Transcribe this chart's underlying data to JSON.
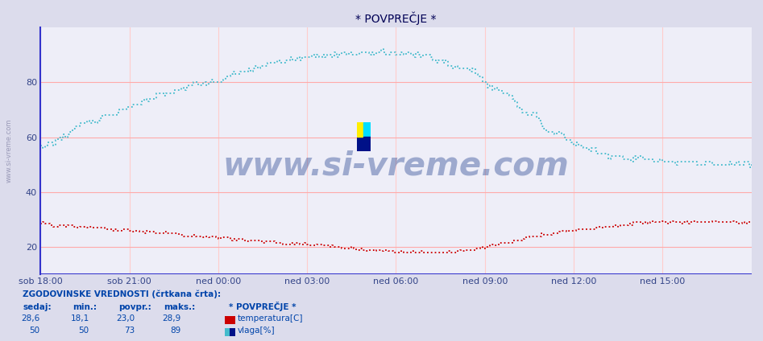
{
  "title": "* POVPREČJE *",
  "bg_color": "#dcdcec",
  "plot_bg_color": "#eeeef8",
  "grid_color_h": "#ffaaaa",
  "grid_color_v": "#ffcccc",
  "x_labels": [
    "sob 18:00",
    "sob 21:00",
    "ned 00:00",
    "ned 03:00",
    "ned 06:00",
    "ned 09:00",
    "ned 12:00",
    "ned 15:00"
  ],
  "x_ticks": [
    0,
    36,
    72,
    108,
    144,
    180,
    216,
    252
  ],
  "y_ticks": [
    20,
    40,
    60,
    80
  ],
  "y_min": 10,
  "y_max": 100,
  "temp_color": "#cc0000",
  "hum_color": "#44bbcc",
  "watermark": "www.si-vreme.com",
  "watermark_color": "#1a3a8a",
  "watermark_alpha": 0.38,
  "sidebar_text": "www.si-vreme.com",
  "sidebar_color": "#8888aa",
  "n_points": 289,
  "title_color": "#000055",
  "tick_color": "#334488",
  "axis_color_v": "#3333cc",
  "axis_color_h": "#cc3333",
  "bottom_header": "ZGODOVINSKE VREDNOSTI (črtkana črta):",
  "col_headers": [
    "sedaj:",
    "min.:",
    "povpr.:",
    "maks.:",
    "* POVPREČJE *"
  ],
  "temp_vals": [
    "28,6",
    "18,1",
    "23,0",
    "28,9"
  ],
  "hum_vals": [
    "50",
    "50",
    "73",
    "89"
  ],
  "temp_label": "temperatura[C]",
  "hum_label": "vlaga[%]",
  "legend_color": "#0044aa"
}
